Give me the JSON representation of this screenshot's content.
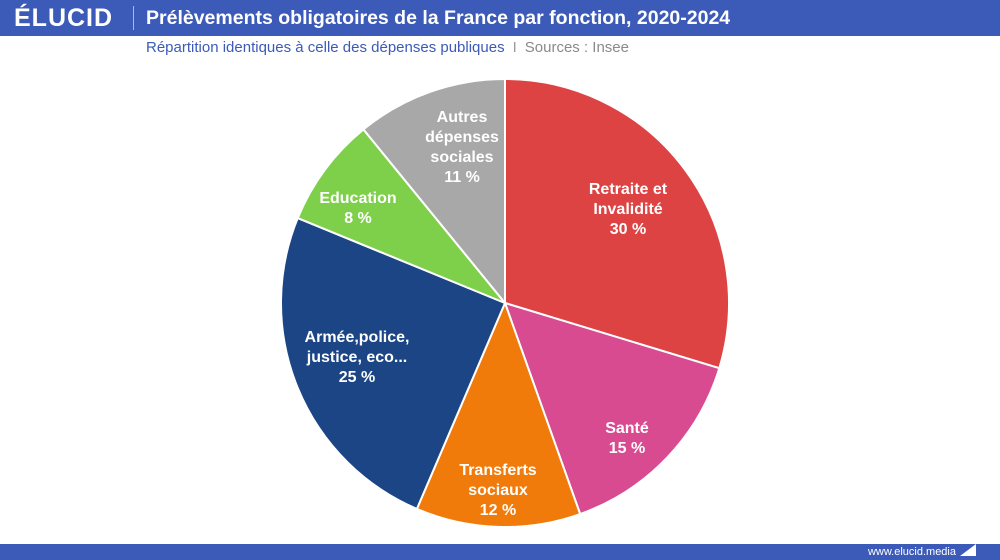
{
  "header": {
    "logo": "ÉLUCID",
    "title": "Prélèvements obligatoires de la France par fonction, 2020-2024"
  },
  "subheader": {
    "subtitle": "Répartition identiques à celle des dépenses publiques",
    "divider": "I",
    "sources": "Sources : Insee"
  },
  "footer": {
    "url": "www.elucid.media"
  },
  "colors": {
    "brand": "#3c5ab8",
    "retraite": "#dd4343",
    "sante": "#d94b91",
    "transferts": "#f07a0a",
    "armee": "#1b4585",
    "education": "#7ed04a",
    "autres": "#a8a8a8"
  },
  "chart_data": {
    "type": "pie",
    "slices": [
      {
        "name": "Retraite et Invalidité",
        "lines": [
          "Retraite et",
          "Invalidité",
          "30 %"
        ],
        "value": 30,
        "color": "#dd4343"
      },
      {
        "name": "Santé",
        "lines": [
          "Santé",
          "15 %"
        ],
        "value": 15,
        "color": "#d94b91"
      },
      {
        "name": "Transferts sociaux",
        "lines": [
          "Transferts",
          "sociaux",
          "12 %"
        ],
        "value": 12,
        "color": "#f07a0a"
      },
      {
        "name": "Armée,police, justice, eco...",
        "lines": [
          "Armée,police,",
          "justice, eco...",
          "25 %"
        ],
        "value": 25,
        "color": "#1b4585"
      },
      {
        "name": "Education",
        "lines": [
          "Education",
          "8 %"
        ],
        "value": 8,
        "color": "#7ed04a"
      },
      {
        "name": "Autres dépenses sociales",
        "lines": [
          "Autres",
          "dépenses",
          "sociales",
          "11 %"
        ],
        "value": 11,
        "color": "#a8a8a8"
      }
    ]
  }
}
